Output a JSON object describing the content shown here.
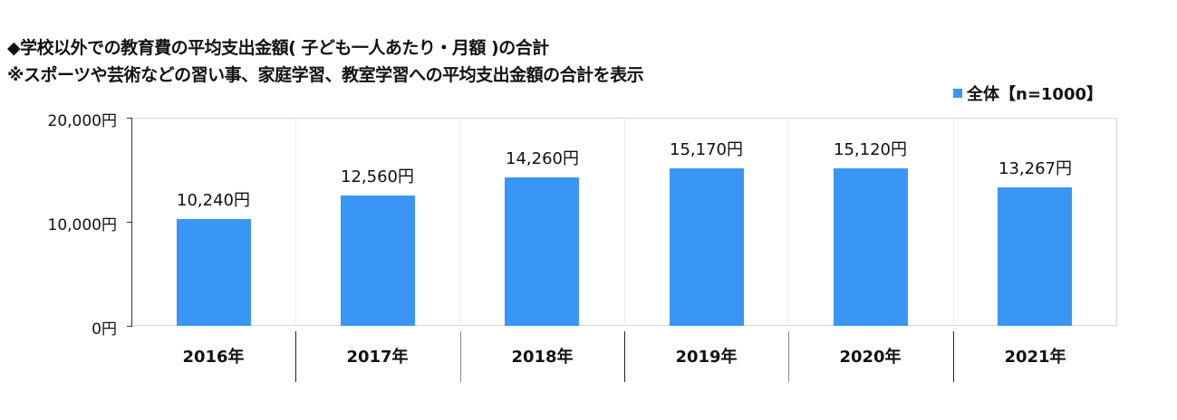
{
  "chart_data": {
    "type": "bar",
    "title": "◆学校以外での教育費の平均支出金額（子ども一人あたり・月額）の合計",
    "subtitle": "※スポーツや芸術などの習い事、家庭学習、教室学習への平均支出金額の合計を表示",
    "categories": [
      "2016年",
      "2017年",
      "2018年",
      "2019年",
      "2020年",
      "2021年"
    ],
    "series": [
      {
        "name": "全体【n=1000】",
        "color": "#3a96f4",
        "values": [
          10240,
          12560,
          14260,
          15170,
          15120,
          13267
        ],
        "data_labels": [
          "10,240円",
          "12,560円",
          "14,260円",
          "15,170円",
          "15,120円",
          "13,267円"
        ]
      }
    ],
    "xlabel": "",
    "ylabel": "",
    "ylim": [
      0,
      20000
    ],
    "yticks": [
      0,
      10000,
      20000
    ],
    "ytick_labels": [
      "0円",
      "10,000円",
      "20,000円"
    ],
    "grid": "vertical category separators only",
    "legend_position": "top-right"
  },
  "title": {
    "line1": "◆学校以外での教育費の平均支出金額( 子ども一人あたり・月額 )の合計",
    "line2": "※スポーツや芸術などの習い事、家庭学習、教室学習への平均支出金額の合計を表示"
  },
  "legend": {
    "label": "全体【n=1000】",
    "color": "#3a96f4"
  },
  "axis": {
    "y_labels": [
      "20,000円",
      "10,000円",
      "0円"
    ]
  }
}
